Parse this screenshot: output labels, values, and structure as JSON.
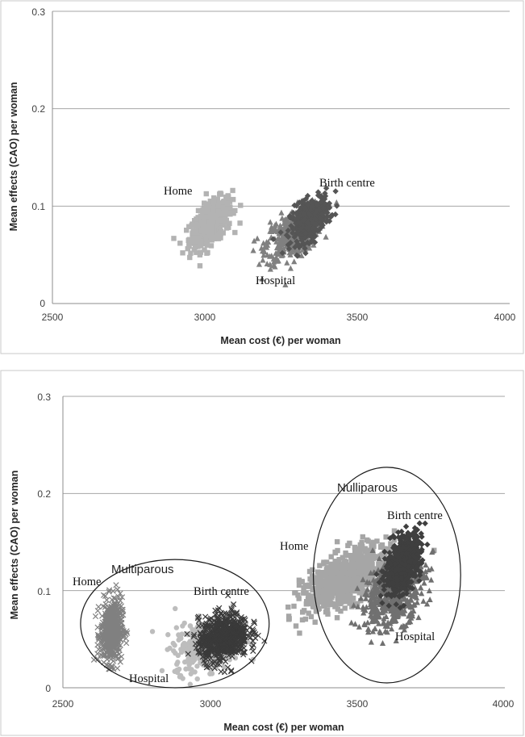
{
  "chart_data": [
    {
      "type": "scatter",
      "title": "",
      "xlabel": "Mean cost (€) per woman",
      "ylabel": "Mean effects (CAO) per woman",
      "xlim": [
        2500,
        4000
      ],
      "ylim": [
        0,
        0.3
      ],
      "x_ticks": [
        "2500",
        "3000",
        "3500",
        "4000"
      ],
      "y_ticks": [
        "0",
        "0.1",
        "0.2",
        "0.3"
      ],
      "grid": "horizontal",
      "legend": "none",
      "series": [
        {
          "name": "Home",
          "marker": "square",
          "color": "#b3b3b3",
          "center": {
            "x": 3020,
            "y": 0.082
          },
          "spread": {
            "x": 35,
            "y": 0.013
          },
          "tilt": 0.6,
          "count": 420
        },
        {
          "name": "Hospital",
          "marker": "triangle",
          "color": "#808080",
          "center": {
            "x": 3290,
            "y": 0.072
          },
          "spread": {
            "x": 45,
            "y": 0.014
          },
          "tilt": 0.5,
          "count": 420
        },
        {
          "name": "Birth centre",
          "marker": "diamond",
          "color": "#555555",
          "center": {
            "x": 3345,
            "y": 0.087
          },
          "spread": {
            "x": 32,
            "y": 0.012
          },
          "tilt": 0.5,
          "count": 360
        }
      ],
      "annotations": [
        {
          "text": "Home",
          "x": 2940,
          "y": 0.113
        },
        {
          "text": "Birth centre",
          "x": 3380,
          "y": 0.123
        },
        {
          "text": "Hospital",
          "x": 3230,
          "y": 0.022
        }
      ]
    },
    {
      "type": "scatter",
      "title": "",
      "xlabel": "Mean cost (€) per woman",
      "ylabel": "Mean effects (CAO) per woman",
      "xlim": [
        2500,
        4000
      ],
      "ylim": [
        0,
        0.3
      ],
      "x_ticks": [
        "2500",
        "3000",
        "3500",
        "4000"
      ],
      "y_ticks": [
        "0",
        "0.1",
        "0.2",
        "0.3"
      ],
      "grid": "horizontal",
      "legend": "none",
      "groups": [
        {
          "label": "Multiparous",
          "center": {
            "x": 2880,
            "y": 0.066
          },
          "radius": {
            "x": 320,
            "y": 0.066
          }
        },
        {
          "label": "Nulliparous",
          "center": {
            "x": 3600,
            "y": 0.116
          },
          "radius": {
            "x": 250,
            "y": 0.111
          }
        }
      ],
      "series": [
        {
          "name": "Home",
          "group": "Multiparous",
          "marker": "x",
          "color": "#808080",
          "center": {
            "x": 2665,
            "y": 0.058
          },
          "spread": {
            "x": 18,
            "y": 0.016
          },
          "tilt": 0.1,
          "count": 520
        },
        {
          "name": "Hospital",
          "group": "Multiparous",
          "marker": "circle",
          "color": "#bdbdbd",
          "center": {
            "x": 2990,
            "y": 0.045
          },
          "spread": {
            "x": 55,
            "y": 0.013
          },
          "tilt": 0.3,
          "count": 420
        },
        {
          "name": "Birth centre",
          "group": "Multiparous",
          "marker": "x",
          "color": "#3a3a3a",
          "center": {
            "x": 3045,
            "y": 0.052
          },
          "spread": {
            "x": 42,
            "y": 0.012
          },
          "tilt": 0.2,
          "count": 700
        },
        {
          "name": "Home",
          "group": "Nulliparous",
          "marker": "square",
          "color": "#a6a6a6",
          "center": {
            "x": 3460,
            "y": 0.112
          },
          "spread": {
            "x": 70,
            "y": 0.016
          },
          "tilt": 0.6,
          "count": 750
        },
        {
          "name": "Hospital",
          "group": "Nulliparous",
          "marker": "triangle",
          "color": "#707070",
          "center": {
            "x": 3620,
            "y": 0.098
          },
          "spread": {
            "x": 55,
            "y": 0.019
          },
          "tilt": 0.4,
          "count": 500
        },
        {
          "name": "Birth centre",
          "group": "Nulliparous",
          "marker": "diamond",
          "color": "#3f3f3f",
          "center": {
            "x": 3655,
            "y": 0.128
          },
          "spread": {
            "x": 30,
            "y": 0.015
          },
          "tilt": 0.5,
          "count": 600
        }
      ],
      "annotations": [
        {
          "text": "Multiparous",
          "x": 2760,
          "y": 0.121,
          "style": "sans"
        },
        {
          "text": "Nulliparous",
          "x": 3485,
          "y": 0.203,
          "style": "sans"
        },
        {
          "text": "Home",
          "x": 2535,
          "y": 0.096
        },
        {
          "text": "Birth centre",
          "x": 2940,
          "y": 0.093
        },
        {
          "text": "Hospital",
          "x": 2720,
          "y": 0.006
        },
        {
          "text": "Home",
          "x": 3250,
          "y": 0.133
        },
        {
          "text": "Birth centre",
          "x": 3550,
          "y": 0.173
        },
        {
          "text": "Hospital",
          "x": 3580,
          "y": 0.049
        }
      ]
    }
  ]
}
